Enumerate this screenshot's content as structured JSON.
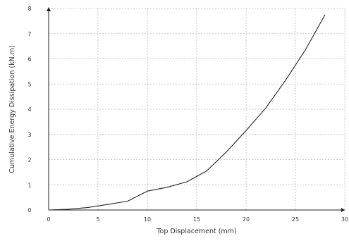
{
  "chart_data": {
    "type": "line",
    "xlabel": "Top Displacement (mm)",
    "ylabel": "Cumulative Energy Dissipation  (kN.m)",
    "xlim": [
      0,
      30
    ],
    "ylim": [
      0,
      8
    ],
    "xticks": [
      0,
      5,
      10,
      15,
      20,
      25,
      30
    ],
    "yticks": [
      0,
      1,
      2,
      3,
      4,
      5,
      6,
      7,
      8
    ],
    "grid": true,
    "series": [
      {
        "x": [
          0,
          2,
          4,
          6,
          8,
          10,
          12,
          14,
          16,
          18,
          20,
          22,
          24,
          26,
          28
        ],
        "y": [
          0,
          0.03,
          0.1,
          0.22,
          0.35,
          0.75,
          0.9,
          1.12,
          1.55,
          2.3,
          3.15,
          4.05,
          5.15,
          6.35,
          7.75
        ]
      }
    ],
    "colors": {
      "line": "#222222",
      "grid": "#bbbbbb",
      "axis": "#222222"
    }
  }
}
